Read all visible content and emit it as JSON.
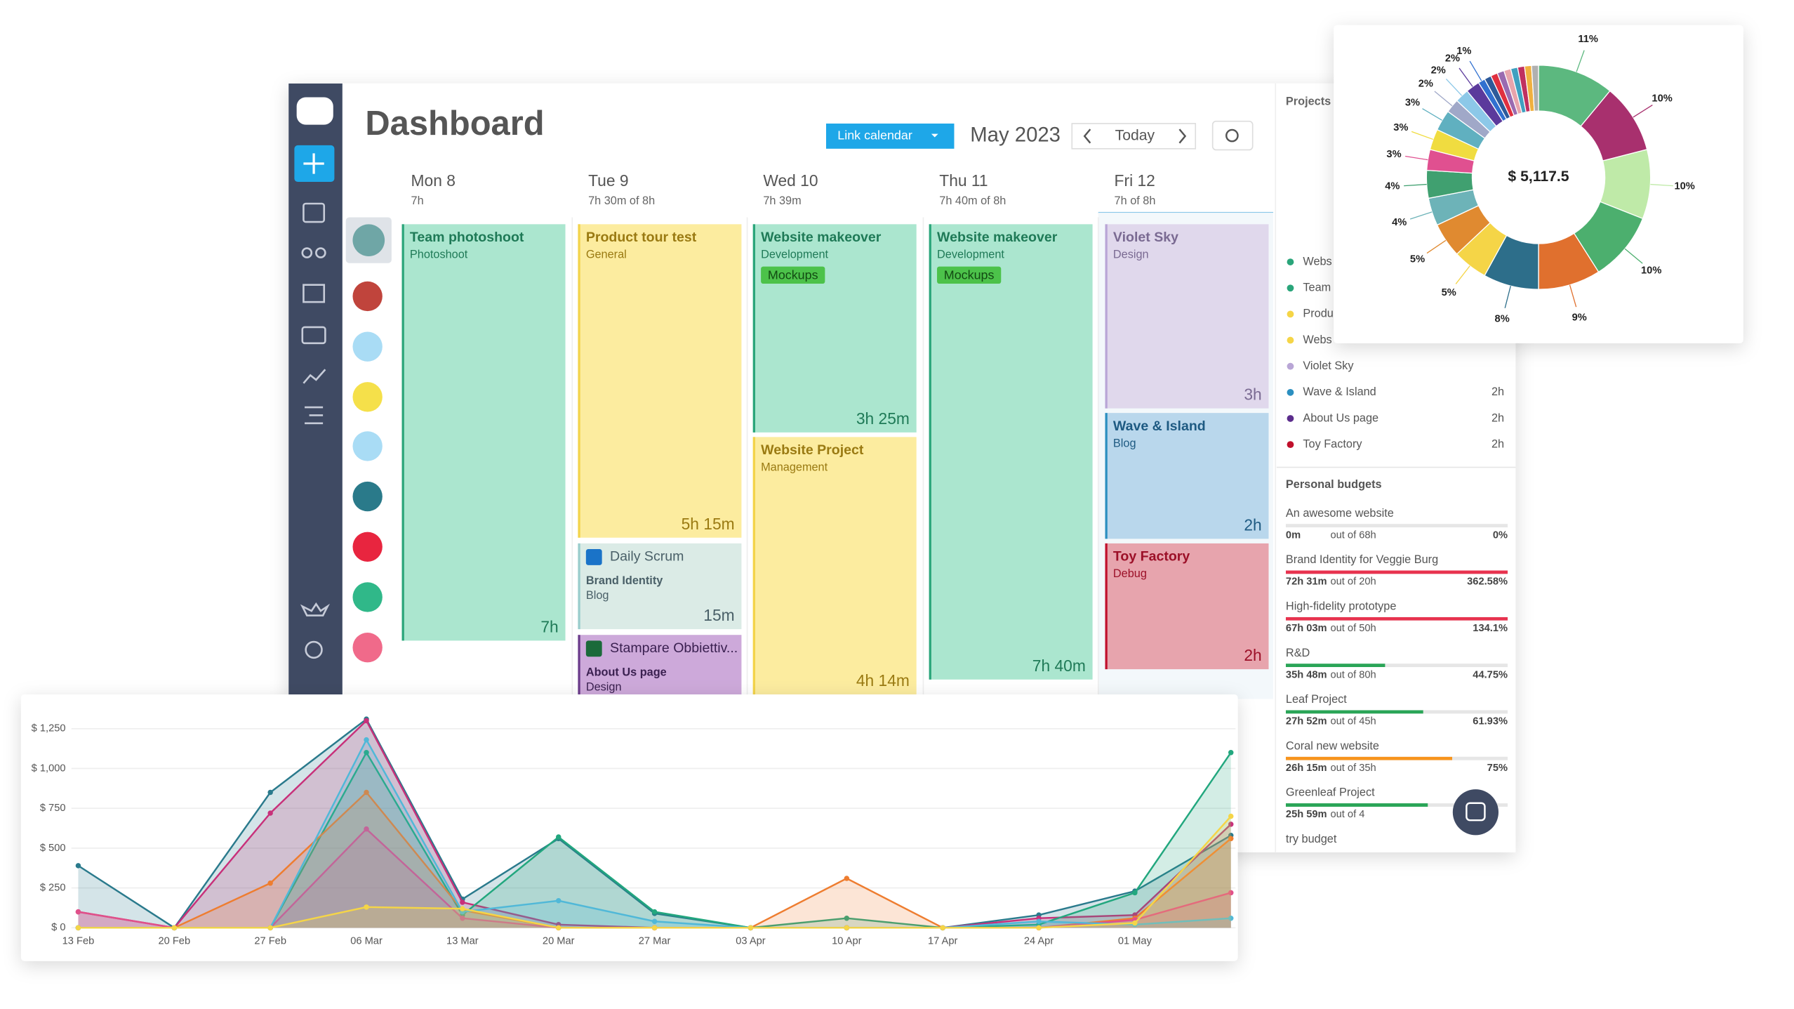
{
  "header": {
    "title": "Dashboard",
    "link_calendar": "Link calendar",
    "month": "May 2023",
    "today": "Today"
  },
  "days": [
    {
      "day": "Mon 8",
      "hours": "7h"
    },
    {
      "day": "Tue 9",
      "hours": "7h 30m  of 8h"
    },
    {
      "day": "Wed 10",
      "hours": "7h 39m"
    },
    {
      "day": "Thu 11",
      "hours": "7h 40m  of 8h"
    },
    {
      "day": "Fri 12",
      "hours": "7h  of 8h"
    }
  ],
  "events": [
    {
      "title": "Team photoshoot",
      "subtitle": "Photoshoot",
      "duration": "7h"
    },
    {
      "title": "Product tour test",
      "subtitle": "General",
      "duration": "5h 15m"
    },
    {
      "title": "Daily Scrum",
      "subtitle": "Brand Identity",
      "detail": "Blog",
      "duration": "15m"
    },
    {
      "title": "Stampare Obbiettiv...",
      "subtitle": "About Us page",
      "detail": "Design"
    },
    {
      "title": "Website makeover",
      "subtitle": "Development",
      "tag": "Mockups",
      "duration": "3h 25m"
    },
    {
      "title": "Website Project",
      "subtitle": "Management",
      "duration": "4h 14m"
    },
    {
      "title": "Website makeover",
      "subtitle": "Development",
      "tag": "Mockups",
      "duration": "7h 40m"
    },
    {
      "title": "Violet Sky",
      "subtitle": "Design",
      "duration": "3h"
    },
    {
      "title": "Wave & Island",
      "subtitle": "Blog",
      "duration": "2h"
    },
    {
      "title": "Toy Factory",
      "subtitle": "Debug",
      "duration": "2h"
    }
  ],
  "projects": {
    "title": "Projects",
    "items": [
      {
        "name": "Webs",
        "color": "#2aa57a"
      },
      {
        "name": "Team",
        "color": "#2aa57a"
      },
      {
        "name": "Produ",
        "color": "#f5d547"
      },
      {
        "name": "Webs",
        "color": "#f5d547"
      },
      {
        "name": "Violet Sky",
        "color": "#b9a6d6"
      },
      {
        "name": "Wave & Island",
        "hours": "2h",
        "color": "#2b8fc0"
      },
      {
        "name": "About Us page",
        "hours": "2h",
        "color": "#5b2c8c"
      },
      {
        "name": "Toy Factory",
        "hours": "2h",
        "color": "#c0102c"
      }
    ]
  },
  "budgets": {
    "title": "Personal budgets",
    "items": [
      {
        "name": "An awesome website",
        "spent": "0m",
        "of": "out of 68h",
        "percent": 0,
        "percent_label": "0%",
        "color": "#2aa57a"
      },
      {
        "name": "Brand Identity for Veggie Burg",
        "spent": "72h 31m",
        "of": "out of 20h",
        "percent": 362.58,
        "percent_label": "362.58%",
        "color": "#e8334f"
      },
      {
        "name": "High-fidelity prototype",
        "spent": "67h 03m",
        "of": "out of 50h",
        "percent": 134.1,
        "percent_label": "134.1%",
        "color": "#e8334f"
      },
      {
        "name": "R&D",
        "spent": "35h 48m",
        "of": "out of 80h",
        "percent": 44.75,
        "percent_label": "44.75%",
        "color": "#2aa557"
      },
      {
        "name": "Leaf Project",
        "spent": "27h 52m",
        "of": "out of 45h",
        "percent": 61.93,
        "percent_label": "61.93%",
        "color": "#2aa557"
      },
      {
        "name": "Coral new website",
        "spent": "26h 15m",
        "of": "out of 35h",
        "percent": 75,
        "percent_label": "75%",
        "color": "#f7941d"
      },
      {
        "name": "Greenleaf Project",
        "spent": "25h 59m",
        "of": "out of 4",
        "percent": 64,
        "color": "#2aa557"
      },
      {
        "name": "try budget"
      }
    ]
  },
  "chart_data": [
    {
      "type": "pie",
      "total_label": "$ 5,117.5",
      "values": [
        11,
        10,
        10,
        10,
        9,
        8,
        5,
        5,
        4,
        4,
        3,
        3,
        3,
        2,
        2,
        2,
        1,
        1,
        1,
        1,
        1,
        1,
        1,
        1,
        1
      ],
      "value_labels": [
        "11%",
        "10%",
        "10%",
        "10%",
        "9%",
        "8%",
        "5%",
        "5%",
        "4%",
        "4%",
        "3%",
        "3%",
        "3%",
        "2%",
        "2%",
        "2%",
        "1%",
        null,
        null,
        null,
        null,
        null,
        null,
        null,
        null
      ],
      "colors": [
        "#5cb87f",
        "#a8306e",
        "#bfeaa8",
        "#4caf6e",
        "#e0702e",
        "#2d6e8a",
        "#f5d547",
        "#e08a30",
        "#6db3b8",
        "#40a070",
        "#e05090",
        "#f0dc40",
        "#60b0c0",
        "#a0a8c8",
        "#8cc8e8",
        "#5b3a9c",
        "#3070d0",
        "#2d5a9a",
        "#e03040",
        "#9a6ab0",
        "#e8a4ac",
        "#40a0c0",
        "#c03060",
        "#f0b040",
        "#b0b0b0"
      ]
    },
    {
      "type": "area",
      "categories": [
        "13 Feb",
        "20 Feb",
        "27 Feb",
        "06 Mar",
        "13 Mar",
        "20 Mar",
        "27 Mar",
        "03 Apr",
        "10 Apr",
        "17 Apr",
        "24 Apr",
        "01 May",
        null
      ],
      "ylim": [
        0,
        1300
      ],
      "yticks": [
        {
          "value": 0,
          "label": "$ 0"
        },
        {
          "value": 250,
          "label": "$ 250"
        },
        {
          "value": 500,
          "label": "$ 500"
        },
        {
          "value": 750,
          "label": "$ 750"
        },
        {
          "value": 1000,
          "label": "$ 1,000"
        },
        {
          "value": 1250,
          "label": "$ 1,250"
        }
      ],
      "grid": true,
      "series": [
        {
          "color": "#2a7a8c",
          "values": [
            390,
            0,
            850,
            1310,
            180,
            560,
            90,
            0,
            0,
            0,
            80,
            230,
            580
          ]
        },
        {
          "color": "#c8307a",
          "values": [
            100,
            0,
            720,
            1300,
            160,
            20,
            0,
            0,
            0,
            0,
            60,
            80,
            650
          ]
        },
        {
          "color": "#22a77e",
          "values": [
            0,
            0,
            0,
            1100,
            80,
            570,
            100,
            0,
            60,
            0,
            20,
            220,
            1100
          ]
        },
        {
          "color": "#ee7d30",
          "values": [
            0,
            0,
            280,
            850,
            110,
            0,
            0,
            0,
            310,
            0,
            0,
            60,
            560
          ]
        },
        {
          "color": "#e0508a",
          "values": [
            100,
            0,
            0,
            620,
            60,
            0,
            0,
            0,
            0,
            0,
            0,
            50,
            220
          ]
        },
        {
          "color": "#50b8d8",
          "values": [
            0,
            0,
            0,
            1180,
            100,
            170,
            40,
            0,
            0,
            0,
            40,
            20,
            60
          ]
        },
        {
          "color": "#f5d547",
          "values": [
            0,
            0,
            0,
            130,
            120,
            0,
            0,
            0,
            0,
            0,
            0,
            30,
            700
          ]
        }
      ]
    }
  ]
}
